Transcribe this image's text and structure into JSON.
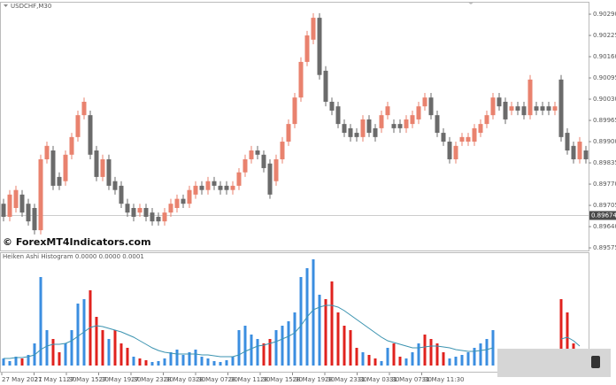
{
  "chart_data": [
    {
      "type": "candlestick",
      "title": "USDCHF,M30",
      "up_color": "#e9826e",
      "down_color": "#6b6b6b",
      "ylim": [
        0.89567,
        0.90328
      ],
      "yticks": [
        {
          "value": 0.9029,
          "label": "0.90290"
        },
        0.90225,
        {
          "value": 0.9016,
          "label": "0.90160"
        },
        0.90095,
        {
          "value": 0.9003,
          "label": "0.90030"
        },
        0.89965,
        {
          "value": 0.899,
          "label": "0.89900"
        },
        0.89835,
        {
          "value": 0.8977,
          "label": "0.89770"
        },
        0.89705,
        {
          "value": 0.8964,
          "label": "0.89640"
        },
        0.89575
      ],
      "current_price": 0.89674,
      "open": [
        0.8971,
        0.8967,
        0.89697,
        0.89738,
        0.8971,
        0.89697,
        0.89629,
        0.89846,
        0.89873,
        0.89792,
        0.89779,
        0.8986,
        0.89914,
        0.89981,
        0.89981,
        0.89873,
        0.89792,
        0.89846,
        0.89779,
        0.89765,
        0.8971,
        0.89697,
        0.89683,
        0.89697,
        0.89683,
        0.8967,
        0.89656,
        0.89683,
        0.89697,
        0.89725,
        0.8971,
        0.89738,
        0.89765,
        0.89752,
        0.89779,
        0.89765,
        0.89765,
        0.89752,
        0.89765,
        0.89806,
        0.89846,
        0.89873,
        0.8986,
        0.89833,
        0.89779,
        0.89846,
        0.899,
        0.89954,
        0.90035,
        0.90144,
        0.90212,
        0.90279,
        0.90117,
        0.90022,
        0.90008,
        0.89954,
        0.89941,
        0.89927,
        0.89914,
        0.89968,
        0.89941,
        0.89941,
        0.89981,
        0.89954,
        0.89954,
        0.89941,
        0.89954,
        0.89968,
        0.90008,
        0.90035,
        0.89981,
        0.89927,
        0.899,
        0.89846,
        0.899,
        0.899,
        0.899,
        0.89927,
        0.89954,
        0.89981,
        0.90035,
        0.90022,
        0.89995,
        0.90008,
        0.90008,
        0.89981,
        0.90008,
        0.90008,
        0.90008,
        0.89995,
        0.9009,
        0.89927,
        0.89887,
        0.89846,
        0.89873
      ],
      "high": [
        0.89725,
        0.89752,
        0.89765,
        0.89752,
        0.89725,
        0.8971,
        0.8986,
        0.899,
        0.89887,
        0.89806,
        0.89873,
        0.89927,
        0.89995,
        0.90035,
        0.89995,
        0.89887,
        0.8986,
        0.8986,
        0.89792,
        0.89779,
        0.89725,
        0.8971,
        0.8971,
        0.8971,
        0.89697,
        0.89683,
        0.89697,
        0.89725,
        0.89738,
        0.89738,
        0.89765,
        0.89779,
        0.89779,
        0.89792,
        0.89792,
        0.89779,
        0.89779,
        0.89779,
        0.89819,
        0.8986,
        0.89887,
        0.89887,
        0.89873,
        0.89846,
        0.8986,
        0.89914,
        0.89968,
        0.90049,
        0.90158,
        0.90239,
        0.90293,
        0.90293,
        0.90131,
        0.90035,
        0.90022,
        0.89968,
        0.89954,
        0.89941,
        0.89981,
        0.89981,
        0.89954,
        0.89995,
        0.90022,
        0.89968,
        0.89968,
        0.89981,
        0.89995,
        0.90022,
        0.90049,
        0.90049,
        0.89995,
        0.89941,
        0.89914,
        0.899,
        0.89927,
        0.89927,
        0.89954,
        0.89968,
        0.89995,
        0.90049,
        0.90049,
        0.90035,
        0.90022,
        0.90022,
        0.90022,
        0.90104,
        0.90022,
        0.90022,
        0.90022,
        0.90022,
        0.90104,
        0.89941,
        0.899,
        0.89914,
        0.89887
      ],
      "low": [
        0.89656,
        0.89656,
        0.89683,
        0.8967,
        0.89643,
        0.89616,
        0.89616,
        0.89833,
        0.89752,
        0.89752,
        0.89765,
        0.89846,
        0.899,
        0.89968,
        0.89846,
        0.89779,
        0.89779,
        0.89752,
        0.89738,
        0.89697,
        0.8967,
        0.89656,
        0.8967,
        0.89656,
        0.89643,
        0.89643,
        0.89643,
        0.8967,
        0.89683,
        0.89697,
        0.89697,
        0.89725,
        0.89738,
        0.89738,
        0.89752,
        0.89738,
        0.89738,
        0.89738,
        0.89752,
        0.89792,
        0.89833,
        0.89846,
        0.89806,
        0.89725,
        0.89765,
        0.89833,
        0.89887,
        0.89941,
        0.90022,
        0.90131,
        0.90198,
        0.9009,
        0.90008,
        0.89981,
        0.89941,
        0.89914,
        0.899,
        0.899,
        0.899,
        0.89914,
        0.899,
        0.89927,
        0.89968,
        0.89927,
        0.89927,
        0.89927,
        0.89941,
        0.89954,
        0.89995,
        0.89968,
        0.89914,
        0.89887,
        0.89833,
        0.89833,
        0.89887,
        0.89887,
        0.89887,
        0.89914,
        0.89941,
        0.89968,
        0.89995,
        0.89954,
        0.89981,
        0.89981,
        0.89968,
        0.89968,
        0.89981,
        0.89981,
        0.89981,
        0.89981,
        0.899,
        0.8986,
        0.89833,
        0.89833,
        0.89833
      ],
      "close": [
        0.8967,
        0.89738,
        0.89752,
        0.89683,
        0.89656,
        0.89629,
        0.89846,
        0.89887,
        0.89765,
        0.89765,
        0.8986,
        0.89914,
        0.89981,
        0.90022,
        0.8986,
        0.89792,
        0.89846,
        0.89765,
        0.89752,
        0.8971,
        0.89683,
        0.8967,
        0.89697,
        0.8967,
        0.89656,
        0.89656,
        0.89683,
        0.8971,
        0.89725,
        0.8971,
        0.89752,
        0.89765,
        0.89752,
        0.89779,
        0.89765,
        0.89752,
        0.89752,
        0.89765,
        0.89806,
        0.89846,
        0.89873,
        0.8986,
        0.89819,
        0.89738,
        0.89846,
        0.899,
        0.89954,
        0.90035,
        0.90144,
        0.90225,
        0.90279,
        0.90104,
        0.90022,
        0.89995,
        0.89954,
        0.89927,
        0.89914,
        0.89914,
        0.89968,
        0.89927,
        0.89914,
        0.89981,
        0.90008,
        0.89941,
        0.89941,
        0.89968,
        0.89981,
        0.90008,
        0.90035,
        0.89981,
        0.89927,
        0.899,
        0.89846,
        0.89887,
        0.89914,
        0.89914,
        0.89941,
        0.89954,
        0.89981,
        0.90035,
        0.90008,
        0.89968,
        0.90008,
        0.89995,
        0.89981,
        0.9009,
        0.89995,
        0.89995,
        0.89995,
        0.90008,
        0.89914,
        0.89873,
        0.89846,
        0.899,
        0.89846
      ]
    },
    {
      "type": "bar",
      "title": "Heiken Ashi Histogram 0.0000 0.0000 0.0001",
      "series": [
        {
          "color": "#3b8ee0",
          "values": [
            8,
            5,
            10,
            null,
            12,
            25,
            100,
            40,
            null,
            null,
            25,
            40,
            70,
            75,
            null,
            null,
            null,
            30,
            null,
            null,
            null,
            10,
            null,
            null,
            4,
            5,
            8,
            15,
            18,
            12,
            15,
            18,
            10,
            8,
            5,
            4,
            6,
            10,
            40,
            45,
            35,
            30,
            null,
            null,
            40,
            45,
            50,
            60,
            100,
            110,
            120,
            80,
            null,
            null,
            null,
            null,
            null,
            null,
            15,
            null,
            null,
            5,
            20,
            null,
            null,
            8,
            15,
            25,
            null,
            null,
            null,
            null,
            8,
            10,
            12,
            15,
            20,
            25,
            30,
            40,
            null,
            null,
            null,
            null,
            6,
            null,
            null,
            null,
            null,
            null,
            null,
            null,
            null,
            15,
            null
          ]
        },
        {
          "color": "#e0221e",
          "values": [
            null,
            null,
            null,
            8,
            null,
            null,
            null,
            null,
            30,
            15,
            null,
            null,
            null,
            null,
            85,
            55,
            40,
            null,
            40,
            25,
            20,
            null,
            8,
            6,
            null,
            null,
            null,
            null,
            null,
            null,
            null,
            null,
            null,
            null,
            null,
            null,
            null,
            null,
            null,
            null,
            null,
            null,
            25,
            30,
            null,
            null,
            null,
            null,
            null,
            null,
            null,
            null,
            75,
            95,
            60,
            45,
            40,
            20,
            null,
            12,
            8,
            null,
            null,
            25,
            10,
            null,
            null,
            null,
            35,
            30,
            25,
            15,
            null,
            null,
            null,
            null,
            null,
            null,
            null,
            null,
            null,
            null,
            null,
            null,
            null,
            null,
            null,
            null,
            null,
            null,
            75,
            60,
            25,
            null,
            null
          ]
        }
      ],
      "signal": {
        "color": "#3b93b0",
        "values": [
          8,
          8,
          9,
          9,
          10,
          12,
          18,
          22,
          24,
          24,
          25,
          28,
          33,
          38,
          43,
          45,
          44,
          42,
          40,
          38,
          35,
          32,
          28,
          24,
          20,
          17,
          15,
          14,
          13,
          13,
          13,
          13,
          12,
          12,
          11,
          10,
          10,
          10,
          12,
          16,
          19,
          22,
          23,
          25,
          27,
          30,
          33,
          37,
          45,
          55,
          63,
          66,
          68,
          68,
          66,
          62,
          57,
          52,
          47,
          42,
          37,
          32,
          28,
          26,
          24,
          22,
          20,
          20,
          21,
          22,
          22,
          21,
          20,
          18,
          17,
          16,
          16,
          17,
          18,
          20,
          null,
          null,
          null,
          null,
          null,
          null,
          null,
          null,
          null,
          null,
          30,
          32,
          28,
          22,
          null
        ]
      }
    }
  ],
  "time_labels": [
    "27 May 2021",
    "27 May 11:30",
    "27 May 15:30",
    "27 May 19:30",
    "27 May 23:30",
    "28 May 03:30",
    "28 May 07:30",
    "28 May 11:30",
    "28 May 15:30",
    "28 May 19:30",
    "28 May 23:30",
    "31 May 03:30",
    "31 May 07:30",
    "31 May 11:30"
  ],
  "watermark": "© ForexMT4Indicators.com"
}
